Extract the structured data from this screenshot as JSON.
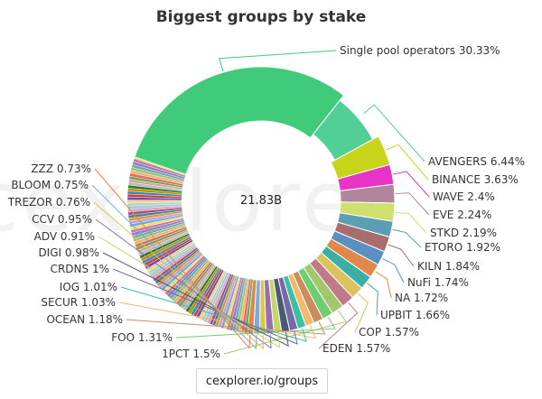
{
  "source_label": "cexplorer.io/groups",
  "watermark": "cexplorer",
  "chart_data": {
    "type": "pie",
    "style": "donut",
    "title": "Biggest groups by stake",
    "center_label": "21.83B",
    "slices": [
      {
        "name": "Single pool operators",
        "label": "Single pool operators 30.33%",
        "value": 30.33,
        "color": "#3fcb7a"
      },
      {
        "name": "AVENGERS",
        "label": "AVENGERS 6.44%",
        "value": 6.44,
        "color": "#52cf97"
      },
      {
        "name": "BINANCE",
        "label": "BINANCE 3.63%",
        "value": 3.63,
        "color": "#c7d41a"
      },
      {
        "name": "WAVE",
        "label": "WAVE 2.4%",
        "value": 2.4,
        "color": "#e534c6"
      },
      {
        "name": "EVE",
        "label": "EVE 2.24%",
        "value": 2.24,
        "color": "#b1869c"
      },
      {
        "name": "STKD",
        "label": "STKD 2.19%",
        "value": 2.19,
        "color": "#cfe06e"
      },
      {
        "name": "ETORO",
        "label": "ETORO 1.92%",
        "value": 1.92,
        "color": "#5a9fb3"
      },
      {
        "name": "KILN",
        "label": "KILN 1.84%",
        "value": 1.84,
        "color": "#a86e6e"
      },
      {
        "name": "NuFi",
        "label": "NuFi 1.74%",
        "value": 1.74,
        "color": "#5b8fbf"
      },
      {
        "name": "NA",
        "label": "NA 1.72%",
        "value": 1.72,
        "color": "#e2874c"
      },
      {
        "name": "UPBIT",
        "label": "UPBIT 1.66%",
        "value": 1.66,
        "color": "#38b0a6"
      },
      {
        "name": "COP",
        "label": "COP 1.57%",
        "value": 1.57,
        "color": "#dcc25c"
      },
      {
        "name": "EDEN",
        "label": "EDEN 1.57%",
        "value": 1.57,
        "color": "#c07a88"
      },
      {
        "name": "1PCT",
        "label": "1PCT 1.5%",
        "value": 1.5,
        "color": "#a3c76e"
      },
      {
        "name": "FOO",
        "label": "FOO 1.31%",
        "value": 1.31,
        "color": "#6fce6f"
      },
      {
        "name": "OCEAN",
        "label": "OCEAN 1.18%",
        "value": 1.18,
        "color": "#c98e5c"
      },
      {
        "name": "SECUR",
        "label": "SECUR 1.03%",
        "value": 1.03,
        "color": "#f4b96d"
      },
      {
        "name": "IOG",
        "label": "IOG 1.01%",
        "value": 1.01,
        "color": "#3dc0a1"
      },
      {
        "name": "CRDNS",
        "label": "CRDNS 1%",
        "value": 1.0,
        "color": "#7768a8"
      },
      {
        "name": "DIGI",
        "label": "DIGI 0.98%",
        "value": 0.98,
        "color": "#4a5a76"
      },
      {
        "name": "ADV",
        "label": "ADV 0.91%",
        "value": 0.91,
        "color": "#c2d66a"
      },
      {
        "name": "CCV",
        "label": "CCV 0.95%",
        "value": 0.95,
        "color": "#9a6fa8"
      },
      {
        "name": "TREZOR",
        "label": "TREZOR 0.76%",
        "value": 0.76,
        "color": "#d9c64a"
      },
      {
        "name": "BLOOM",
        "label": "BLOOM 0.75%",
        "value": 0.75,
        "color": "#7ea9d9"
      },
      {
        "name": "ZZZ",
        "label": "ZZZ 0.73%",
        "value": 0.73,
        "color": "#d98850"
      }
    ],
    "other_slices_note": "many small unlabeled groups fill the remainder",
    "other_palette": [
      "#6aa84f",
      "#e06666",
      "#f6b26b",
      "#93c47d",
      "#76a5af",
      "#8e7cc3",
      "#c27ba0",
      "#ffd966",
      "#6fa8dc",
      "#b4a7d6",
      "#e69138",
      "#45818e",
      "#a64d79",
      "#d5a6bd",
      "#9fc5e8",
      "#b6d7a8",
      "#f9cb9c",
      "#674ea7",
      "#cc4125",
      "#3d85c6",
      "#bf9000",
      "#38761d",
      "#a2c4c9",
      "#ea9999"
    ]
  }
}
